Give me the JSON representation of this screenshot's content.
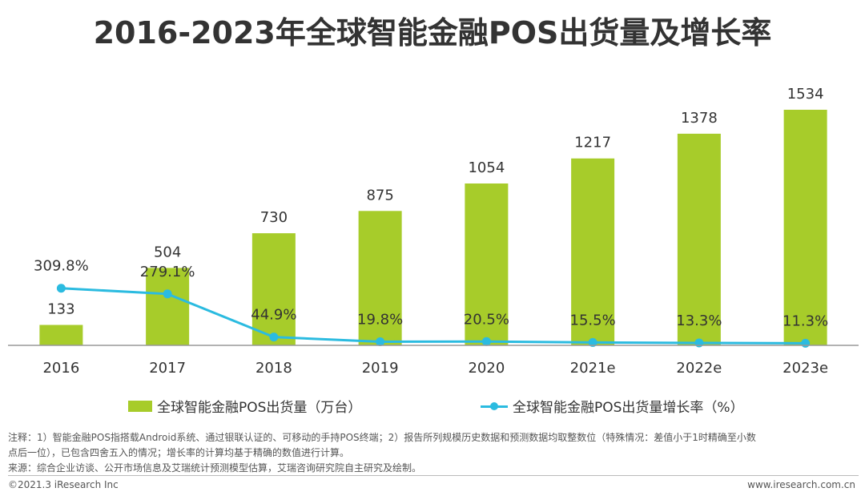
{
  "title": "2016-2023年全球智能金融POS出货量及增长率",
  "chart_data": {
    "type": "bar",
    "categories": [
      "2016",
      "2017",
      "2018",
      "2019",
      "2020",
      "2021e",
      "2022e",
      "2023e"
    ],
    "series": [
      {
        "name": "全球智能金融POS出货量（万台）",
        "type": "bar",
        "values": [
          133,
          504,
          730,
          875,
          1054,
          1217,
          1378,
          1534
        ],
        "labels": [
          "133",
          "504",
          "730",
          "875",
          "1054",
          "1217",
          "1378",
          "1534"
        ],
        "color": "#a7cc2a"
      },
      {
        "name": "全球智能金融POS出货量增长率（%）",
        "type": "line",
        "values": [
          309.8,
          279.1,
          44.9,
          19.8,
          20.5,
          15.5,
          13.3,
          11.3
        ],
        "labels": [
          "309.8%",
          "279.1%",
          "44.9%",
          "19.8%",
          "20.5%",
          "15.5%",
          "13.3%",
          "11.3%"
        ],
        "color": "#2bbbe0"
      }
    ],
    "bar_ylim": [
      0,
      1800
    ],
    "line_ylim": [
      0,
      1500
    ],
    "grid": false,
    "legend": "bottom"
  },
  "legend": {
    "bar_label": "全球智能金融POS出货量（万台）",
    "line_label": "全球智能金融POS出货量增长率（%）"
  },
  "notes": {
    "line1": "注释：1）智能金融POS指搭载Android系统、通过银联认证的、可移动的手持POS终端；2）报告所列规模历史数据和预测数据均取整数位（特殊情况：差值小于1时精确至小数",
    "line2": "点后一位），已包含四舍五入的情况；增长率的计算均基于精确的数值进行计算。",
    "source": "来源：综合企业访谈、公开市场信息及艾瑞统计预测模型估算，艾瑞咨询研究院自主研究及绘制。"
  },
  "footer": {
    "copyright": "©2021.3 iResearch Inc",
    "website": "www.iresearch.com.cn"
  }
}
